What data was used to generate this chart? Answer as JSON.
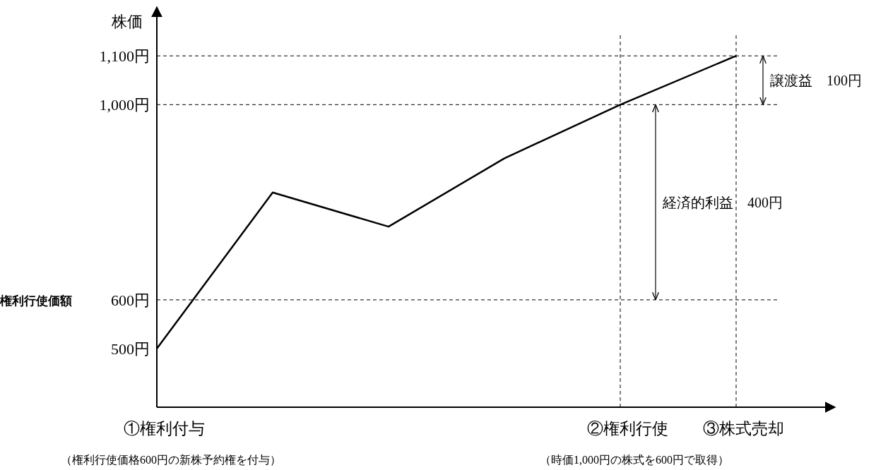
{
  "chart_data": {
    "type": "line",
    "ylabel": "株価",
    "categories": [
      "①権利付与",
      null,
      null,
      null,
      "②権利行使",
      "③株式売却"
    ],
    "values": [
      500,
      820,
      750,
      890,
      1000,
      1100
    ],
    "color": "#000000",
    "line_style": "solid",
    "marker": "none",
    "legend": false,
    "grid": false,
    "ylim": [
      380,
      1200
    ],
    "yticks": [
      {
        "value": 500,
        "label": "500円"
      },
      {
        "value": 600,
        "label": "600円"
      },
      {
        "value": 1000,
        "label": "1,000円"
      },
      {
        "value": 1100,
        "label": "1,100円"
      }
    ],
    "ref_lines": [
      {
        "axis": "y",
        "value": 1100,
        "line_style": "dashed"
      },
      {
        "axis": "y",
        "value": 1000,
        "line_style": "dashed"
      },
      {
        "axis": "y",
        "value": 600,
        "label": "権利行使価額",
        "line_style": "dashed"
      },
      {
        "axis": "x",
        "value": "②権利行使",
        "line_style": "dashed"
      },
      {
        "axis": "x",
        "value": "③株式売却",
        "line_style": "dashed"
      }
    ],
    "annotations": [
      "経済的利益　400円",
      "譲渡益　100円",
      "（権利行使価格600円の新株予約権を付与）",
      "（時価1,000円の株式を600円で取得）"
    ]
  }
}
